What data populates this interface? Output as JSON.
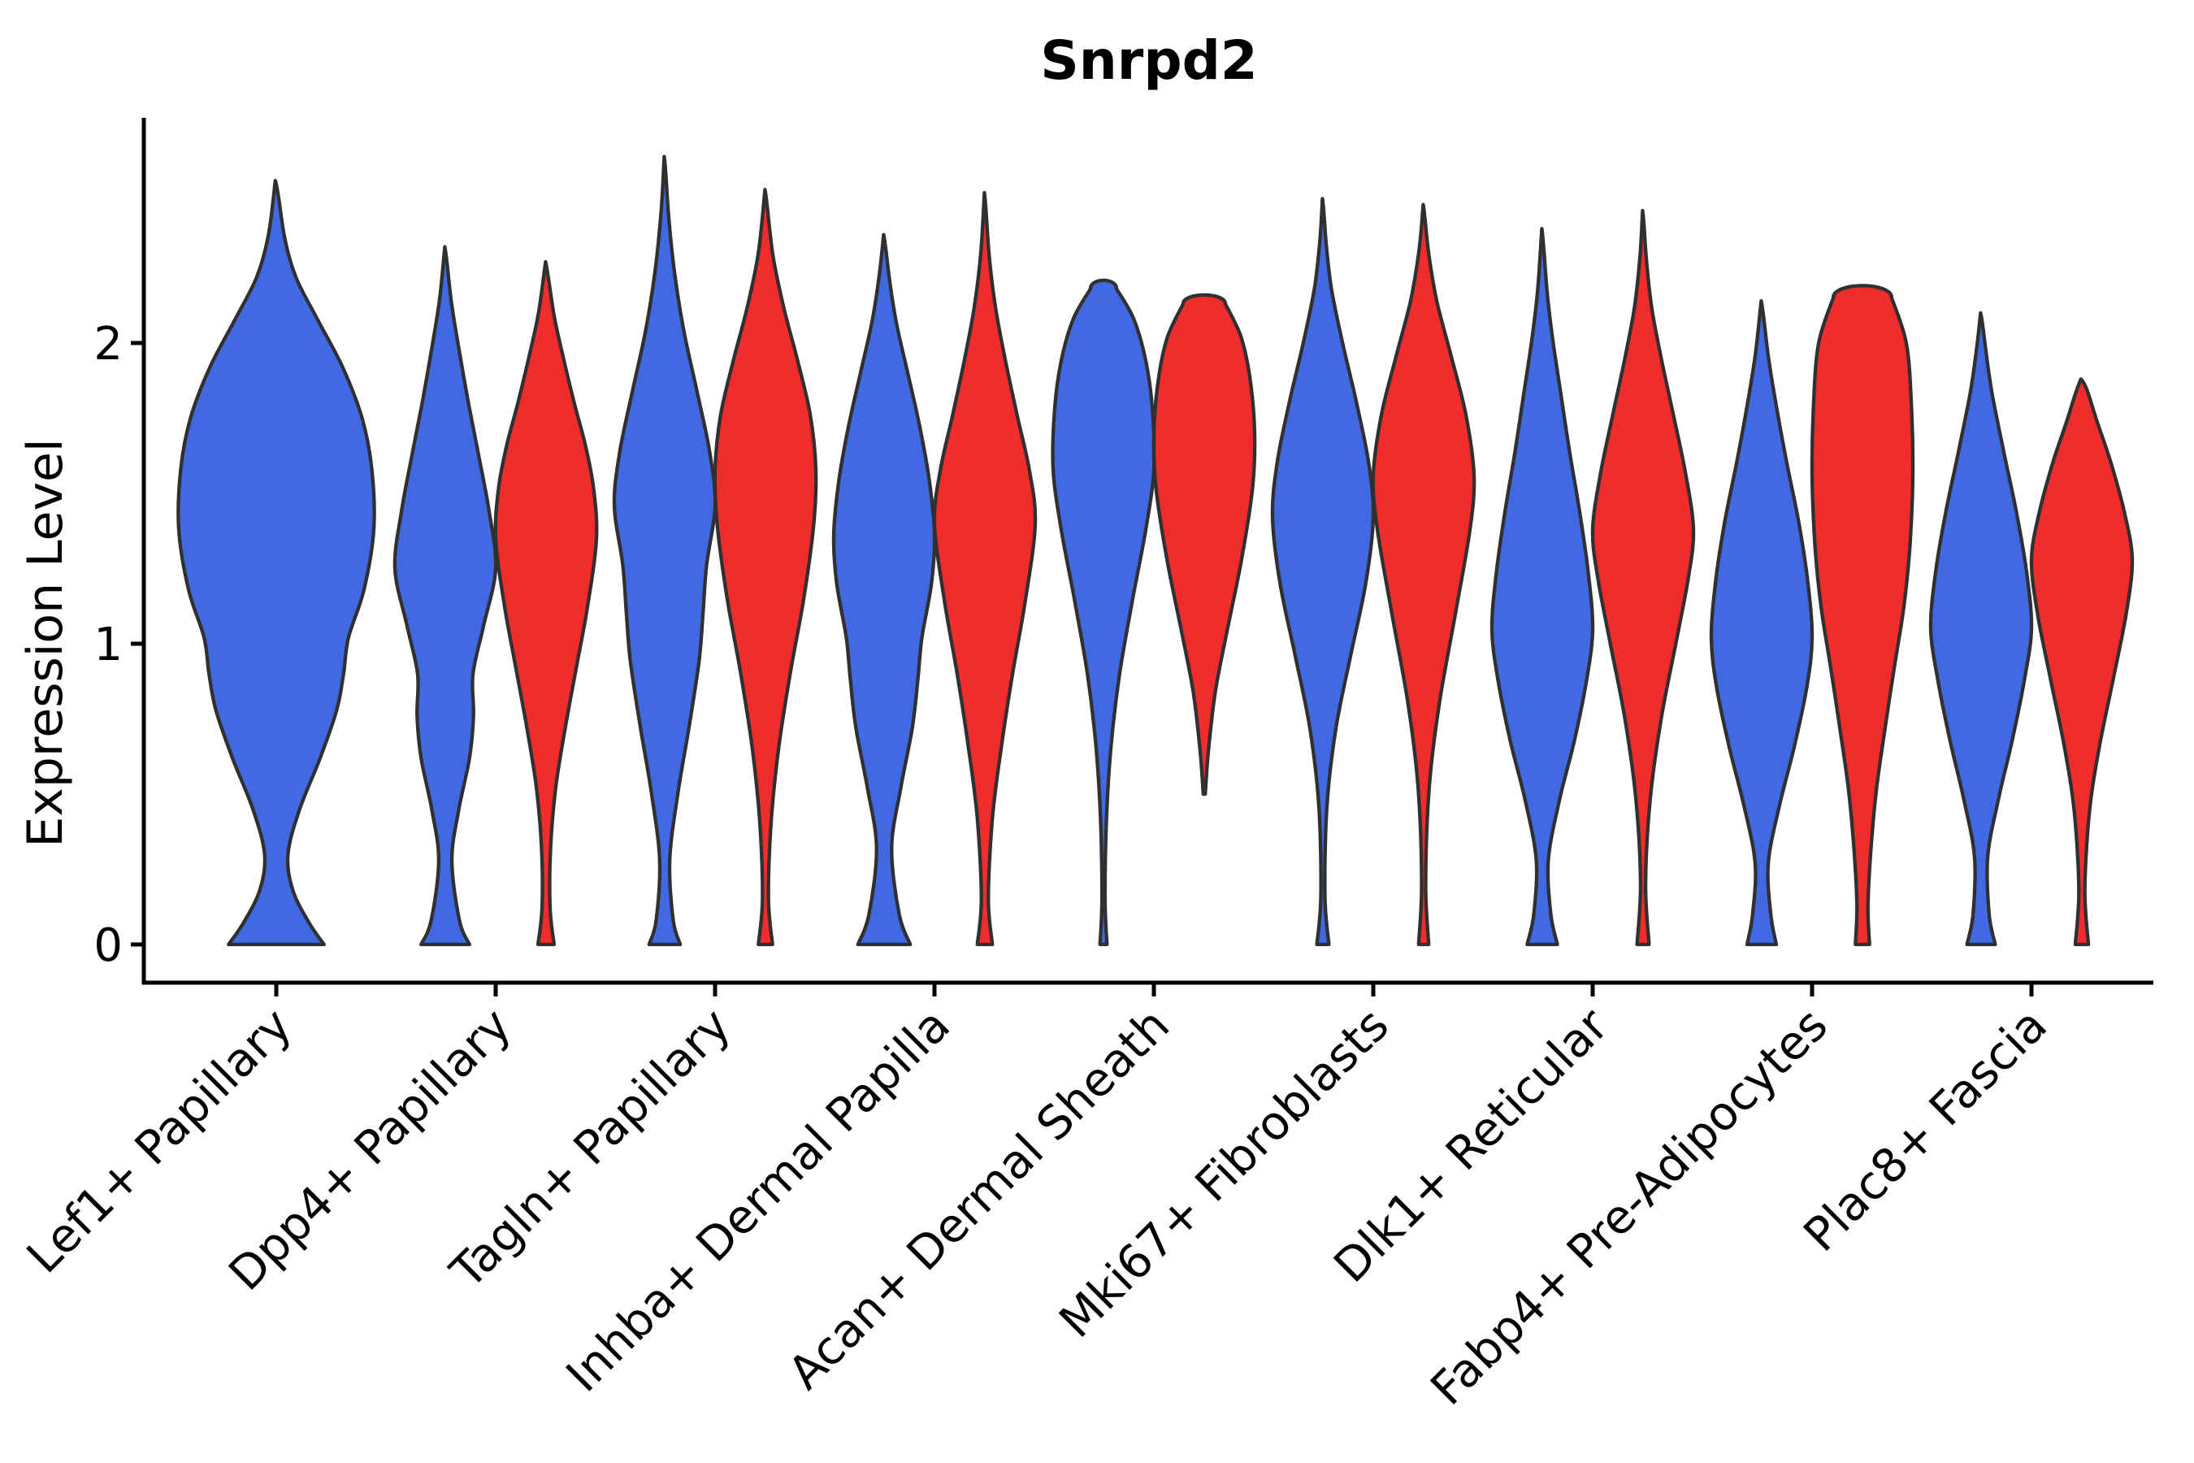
{
  "title": "Snrpd2",
  "ylabel": "Expression Level",
  "colors": {
    "blue": "#4169E1",
    "red": "#F02C2C",
    "outline": "#303030",
    "axis": "#000000"
  },
  "chart_data": {
    "type": "violin",
    "title": "Snrpd2",
    "xlabel": "",
    "ylabel": "Expression Level",
    "ylim": [
      -0.13,
      2.75
    ],
    "yticks": [
      0,
      1,
      2
    ],
    "grid": false,
    "legend": "none",
    "x_tick_rotation": 45,
    "categories": [
      "Lef1+ Papillary",
      "Dpp4+ Papillary",
      "Tagln+ Papillary",
      "Inhba+ Dermal Papilla",
      "Acan+ Dermal Sheath",
      "Mki67+ Fibroblasts",
      "Dlk1+ Reticular",
      "Fabp4+ Pre-Adipocytes",
      "Plac8+ Fascia"
    ],
    "split_colors": {
      "blue": "#4169E1",
      "red": "#F02C2C"
    },
    "violins": [
      {
        "category": "Lef1+ Papillary",
        "cat": 0,
        "side": "center",
        "color": "blue",
        "expr_min": 0,
        "expr_max": 2.54,
        "peak_density_at": 1.38,
        "bottom": "flat",
        "top": "point",
        "profile": [
          [
            0,
            0.49
          ],
          [
            0.07,
            0.34
          ],
          [
            0.18,
            0.17
          ],
          [
            0.3,
            0.12
          ],
          [
            0.45,
            0.24
          ],
          [
            0.62,
            0.45
          ],
          [
            0.78,
            0.62
          ],
          [
            0.9,
            0.69
          ],
          [
            1.02,
            0.74
          ],
          [
            1.18,
            0.9
          ],
          [
            1.38,
            1.0
          ],
          [
            1.58,
            0.98
          ],
          [
            1.75,
            0.88
          ],
          [
            1.92,
            0.68
          ],
          [
            2.08,
            0.42
          ],
          [
            2.22,
            0.2
          ],
          [
            2.36,
            0.08
          ],
          [
            2.54,
            0.01
          ]
        ]
      },
      {
        "category": "Dpp4+ Papillary",
        "cat": 1,
        "side": "left",
        "color": "blue",
        "expr_min": 0,
        "expr_max": 2.32,
        "peak_density_at": 1.25,
        "bottom": "flat",
        "top": "point",
        "profile": [
          [
            0,
            0.48
          ],
          [
            0.08,
            0.28
          ],
          [
            0.28,
            0.13
          ],
          [
            0.45,
            0.27
          ],
          [
            0.62,
            0.48
          ],
          [
            0.76,
            0.56
          ],
          [
            0.9,
            0.55
          ],
          [
            1.06,
            0.76
          ],
          [
            1.25,
            1.0
          ],
          [
            1.44,
            0.87
          ],
          [
            1.62,
            0.67
          ],
          [
            1.8,
            0.46
          ],
          [
            2.0,
            0.25
          ],
          [
            2.15,
            0.11
          ],
          [
            2.32,
            0.01
          ]
        ]
      },
      {
        "category": "Dpp4+ Papillary",
        "cat": 1,
        "side": "right",
        "color": "red",
        "expr_min": 0,
        "expr_max": 2.27,
        "peak_density_at": 1.35,
        "bottom": "flat",
        "top": "point",
        "profile": [
          [
            0,
            0.16
          ],
          [
            0.12,
            0.08
          ],
          [
            0.32,
            0.09
          ],
          [
            0.52,
            0.19
          ],
          [
            0.72,
            0.38
          ],
          [
            0.92,
            0.6
          ],
          [
            1.12,
            0.82
          ],
          [
            1.35,
            1.0
          ],
          [
            1.52,
            0.94
          ],
          [
            1.66,
            0.78
          ],
          [
            1.8,
            0.56
          ],
          [
            1.96,
            0.33
          ],
          [
            2.1,
            0.15
          ],
          [
            2.27,
            0.01
          ]
        ]
      },
      {
        "category": "Tagln+ Papillary",
        "cat": 2,
        "side": "left",
        "color": "blue",
        "expr_min": 0,
        "expr_max": 2.62,
        "peak_density_at": 1.46,
        "bottom": "flat",
        "top": "point",
        "profile": [
          [
            0,
            0.31
          ],
          [
            0.08,
            0.17
          ],
          [
            0.28,
            0.1
          ],
          [
            0.5,
            0.26
          ],
          [
            0.72,
            0.48
          ],
          [
            0.94,
            0.68
          ],
          [
            1.1,
            0.76
          ],
          [
            1.26,
            0.83
          ],
          [
            1.46,
            1.0
          ],
          [
            1.64,
            0.89
          ],
          [
            1.84,
            0.64
          ],
          [
            2.04,
            0.38
          ],
          [
            2.24,
            0.19
          ],
          [
            2.44,
            0.07
          ],
          [
            2.62,
            0.01
          ]
        ]
      },
      {
        "category": "Tagln+ Papillary",
        "cat": 2,
        "side": "right",
        "color": "red",
        "expr_min": 0,
        "expr_max": 2.51,
        "peak_density_at": 1.58,
        "bottom": "flat",
        "top": "point",
        "profile": [
          [
            0,
            0.14
          ],
          [
            0.15,
            0.06
          ],
          [
            0.4,
            0.11
          ],
          [
            0.65,
            0.26
          ],
          [
            0.9,
            0.49
          ],
          [
            1.15,
            0.76
          ],
          [
            1.4,
            0.96
          ],
          [
            1.58,
            1.0
          ],
          [
            1.76,
            0.89
          ],
          [
            1.94,
            0.64
          ],
          [
            2.12,
            0.36
          ],
          [
            2.3,
            0.14
          ],
          [
            2.51,
            0.01
          ]
        ]
      },
      {
        "category": "Inhba+ Dermal Papilla",
        "cat": 3,
        "side": "left",
        "color": "blue",
        "expr_min": 0,
        "expr_max": 2.36,
        "peak_density_at": 1.36,
        "bottom": "flat",
        "top": "point",
        "profile": [
          [
            0,
            0.52
          ],
          [
            0.1,
            0.3
          ],
          [
            0.32,
            0.15
          ],
          [
            0.52,
            0.33
          ],
          [
            0.72,
            0.56
          ],
          [
            0.88,
            0.67
          ],
          [
            1.02,
            0.75
          ],
          [
            1.2,
            0.94
          ],
          [
            1.36,
            1.0
          ],
          [
            1.54,
            0.9
          ],
          [
            1.72,
            0.71
          ],
          [
            1.9,
            0.47
          ],
          [
            2.07,
            0.24
          ],
          [
            2.22,
            0.1
          ],
          [
            2.36,
            0.01
          ]
        ]
      },
      {
        "category": "Inhba+ Dermal Papilla",
        "cat": 3,
        "side": "right",
        "color": "red",
        "expr_min": 0,
        "expr_max": 2.5,
        "peak_density_at": 1.4,
        "bottom": "flat",
        "top": "point",
        "profile": [
          [
            0,
            0.15
          ],
          [
            0.15,
            0.07
          ],
          [
            0.42,
            0.15
          ],
          [
            0.66,
            0.33
          ],
          [
            0.9,
            0.55
          ],
          [
            1.14,
            0.8
          ],
          [
            1.4,
            1.0
          ],
          [
            1.58,
            0.88
          ],
          [
            1.76,
            0.64
          ],
          [
            1.94,
            0.41
          ],
          [
            2.12,
            0.21
          ],
          [
            2.3,
            0.08
          ],
          [
            2.5,
            0.01
          ]
        ]
      },
      {
        "category": "Acan+ Dermal Sheath",
        "cat": 4,
        "side": "left",
        "color": "blue",
        "expr_min": 0,
        "expr_max": 2.18,
        "peak_density_at": 1.58,
        "bottom": "flat",
        "top": "cap",
        "profile": [
          [
            0,
            0.07
          ],
          [
            0.15,
            0.03
          ],
          [
            0.42,
            0.06
          ],
          [
            0.66,
            0.15
          ],
          [
            0.9,
            0.32
          ],
          [
            1.14,
            0.57
          ],
          [
            1.38,
            0.84
          ],
          [
            1.58,
            1.0
          ],
          [
            1.78,
            0.97
          ],
          [
            1.94,
            0.84
          ],
          [
            2.08,
            0.6
          ],
          [
            2.18,
            0.26
          ]
        ]
      },
      {
        "category": "Acan+ Dermal Sheath",
        "cat": 4,
        "side": "right",
        "color": "red",
        "expr_min": 0.5,
        "expr_max": 2.13,
        "peak_density_at": 1.7,
        "bottom": "point",
        "top": "cap",
        "profile": [
          [
            0.5,
            0.02
          ],
          [
            0.64,
            0.08
          ],
          [
            0.84,
            0.22
          ],
          [
            1.04,
            0.45
          ],
          [
            1.28,
            0.74
          ],
          [
            1.52,
            0.96
          ],
          [
            1.7,
            1.0
          ],
          [
            1.88,
            0.91
          ],
          [
            2.02,
            0.73
          ],
          [
            2.13,
            0.42
          ]
        ]
      },
      {
        "category": "Mki67+ Fibroblasts",
        "cat": 5,
        "side": "left",
        "color": "blue",
        "expr_min": 0,
        "expr_max": 2.48,
        "peak_density_at": 1.42,
        "bottom": "flat",
        "top": "point",
        "profile": [
          [
            0,
            0.12
          ],
          [
            0.16,
            0.04
          ],
          [
            0.46,
            0.08
          ],
          [
            0.72,
            0.26
          ],
          [
            0.96,
            0.55
          ],
          [
            1.2,
            0.85
          ],
          [
            1.42,
            1.0
          ],
          [
            1.6,
            0.91
          ],
          [
            1.8,
            0.67
          ],
          [
            2.0,
            0.39
          ],
          [
            2.18,
            0.17
          ],
          [
            2.34,
            0.06
          ],
          [
            2.48,
            0.01
          ]
        ]
      },
      {
        "category": "Mki67+ Fibroblasts",
        "cat": 5,
        "side": "right",
        "color": "red",
        "expr_min": 0,
        "expr_max": 2.46,
        "peak_density_at": 1.56,
        "bottom": "flat",
        "top": "point",
        "profile": [
          [
            0,
            0.1
          ],
          [
            0.2,
            0.04
          ],
          [
            0.52,
            0.11
          ],
          [
            0.8,
            0.31
          ],
          [
            1.1,
            0.63
          ],
          [
            1.38,
            0.92
          ],
          [
            1.56,
            1.0
          ],
          [
            1.76,
            0.84
          ],
          [
            1.96,
            0.54
          ],
          [
            2.14,
            0.26
          ],
          [
            2.31,
            0.09
          ],
          [
            2.46,
            0.01
          ]
        ]
      },
      {
        "category": "Dlk1+ Reticular",
        "cat": 6,
        "side": "left",
        "color": "blue",
        "expr_min": 0,
        "expr_max": 2.38,
        "peak_density_at": 1.05,
        "bottom": "flat",
        "top": "point",
        "profile": [
          [
            0,
            0.3
          ],
          [
            0.1,
            0.17
          ],
          [
            0.28,
            0.12
          ],
          [
            0.48,
            0.34
          ],
          [
            0.68,
            0.64
          ],
          [
            0.88,
            0.88
          ],
          [
            1.05,
            1.0
          ],
          [
            1.24,
            0.91
          ],
          [
            1.44,
            0.74
          ],
          [
            1.64,
            0.54
          ],
          [
            1.84,
            0.36
          ],
          [
            2.02,
            0.2
          ],
          [
            2.18,
            0.09
          ],
          [
            2.38,
            0.01
          ]
        ]
      },
      {
        "category": "Dlk1+ Reticular",
        "cat": 6,
        "side": "right",
        "color": "red",
        "expr_min": 0,
        "expr_max": 2.44,
        "peak_density_at": 1.38,
        "bottom": "flat",
        "top": "point",
        "profile": [
          [
            0,
            0.12
          ],
          [
            0.2,
            0.05
          ],
          [
            0.48,
            0.14
          ],
          [
            0.75,
            0.36
          ],
          [
            1.0,
            0.65
          ],
          [
            1.22,
            0.9
          ],
          [
            1.38,
            1.0
          ],
          [
            1.57,
            0.84
          ],
          [
            1.77,
            0.59
          ],
          [
            1.95,
            0.36
          ],
          [
            2.12,
            0.17
          ],
          [
            2.29,
            0.06
          ],
          [
            2.44,
            0.01
          ]
        ]
      },
      {
        "category": "Fabp4+ Pre-Adipocytes",
        "cat": 7,
        "side": "left",
        "color": "blue",
        "expr_min": 0,
        "expr_max": 2.14,
        "peak_density_at": 1.02,
        "bottom": "flat",
        "top": "point",
        "profile": [
          [
            0,
            0.29
          ],
          [
            0.1,
            0.18
          ],
          [
            0.27,
            0.13
          ],
          [
            0.46,
            0.35
          ],
          [
            0.66,
            0.65
          ],
          [
            0.86,
            0.9
          ],
          [
            1.02,
            1.0
          ],
          [
            1.2,
            0.92
          ],
          [
            1.4,
            0.74
          ],
          [
            1.6,
            0.5
          ],
          [
            1.8,
            0.28
          ],
          [
            1.97,
            0.12
          ],
          [
            2.14,
            0.01
          ]
        ]
      },
      {
        "category": "Fabp4+ Pre-Adipocytes",
        "cat": 7,
        "side": "right",
        "color": "red",
        "expr_min": 0,
        "expr_max": 2.15,
        "peak_density_at": 1.56,
        "bottom": "flat",
        "top": "cap",
        "profile": [
          [
            0,
            0.14
          ],
          [
            0.13,
            0.11
          ],
          [
            0.32,
            0.17
          ],
          [
            0.52,
            0.28
          ],
          [
            0.72,
            0.45
          ],
          [
            0.92,
            0.63
          ],
          [
            1.12,
            0.82
          ],
          [
            1.32,
            0.94
          ],
          [
            1.56,
            1.0
          ],
          [
            1.8,
            0.97
          ],
          [
            2.0,
            0.87
          ],
          [
            2.15,
            0.58
          ]
        ]
      },
      {
        "category": "Plac8+ Fascia",
        "cat": 8,
        "side": "left",
        "color": "blue",
        "expr_min": 0,
        "expr_max": 2.1,
        "peak_density_at": 1.05,
        "bottom": "flat",
        "top": "point",
        "profile": [
          [
            0,
            0.28
          ],
          [
            0.1,
            0.16
          ],
          [
            0.29,
            0.13
          ],
          [
            0.48,
            0.34
          ],
          [
            0.68,
            0.62
          ],
          [
            0.88,
            0.86
          ],
          [
            1.05,
            1.0
          ],
          [
            1.23,
            0.91
          ],
          [
            1.43,
            0.71
          ],
          [
            1.63,
            0.46
          ],
          [
            1.83,
            0.22
          ],
          [
            1.98,
            0.09
          ],
          [
            2.1,
            0.01
          ]
        ]
      },
      {
        "category": "Plac8+ Fascia",
        "cat": 8,
        "side": "right",
        "color": "red",
        "expr_min": 0,
        "expr_max": 1.88,
        "peak_density_at": 1.28,
        "bottom": "flat",
        "top": "point",
        "profile": [
          [
            0,
            0.13
          ],
          [
            0.18,
            0.06
          ],
          [
            0.44,
            0.15
          ],
          [
            0.66,
            0.35
          ],
          [
            0.88,
            0.62
          ],
          [
            1.1,
            0.88
          ],
          [
            1.28,
            1.0
          ],
          [
            1.44,
            0.84
          ],
          [
            1.6,
            0.58
          ],
          [
            1.74,
            0.3
          ],
          [
            1.83,
            0.13
          ],
          [
            1.88,
            0.02
          ]
        ]
      }
    ]
  }
}
